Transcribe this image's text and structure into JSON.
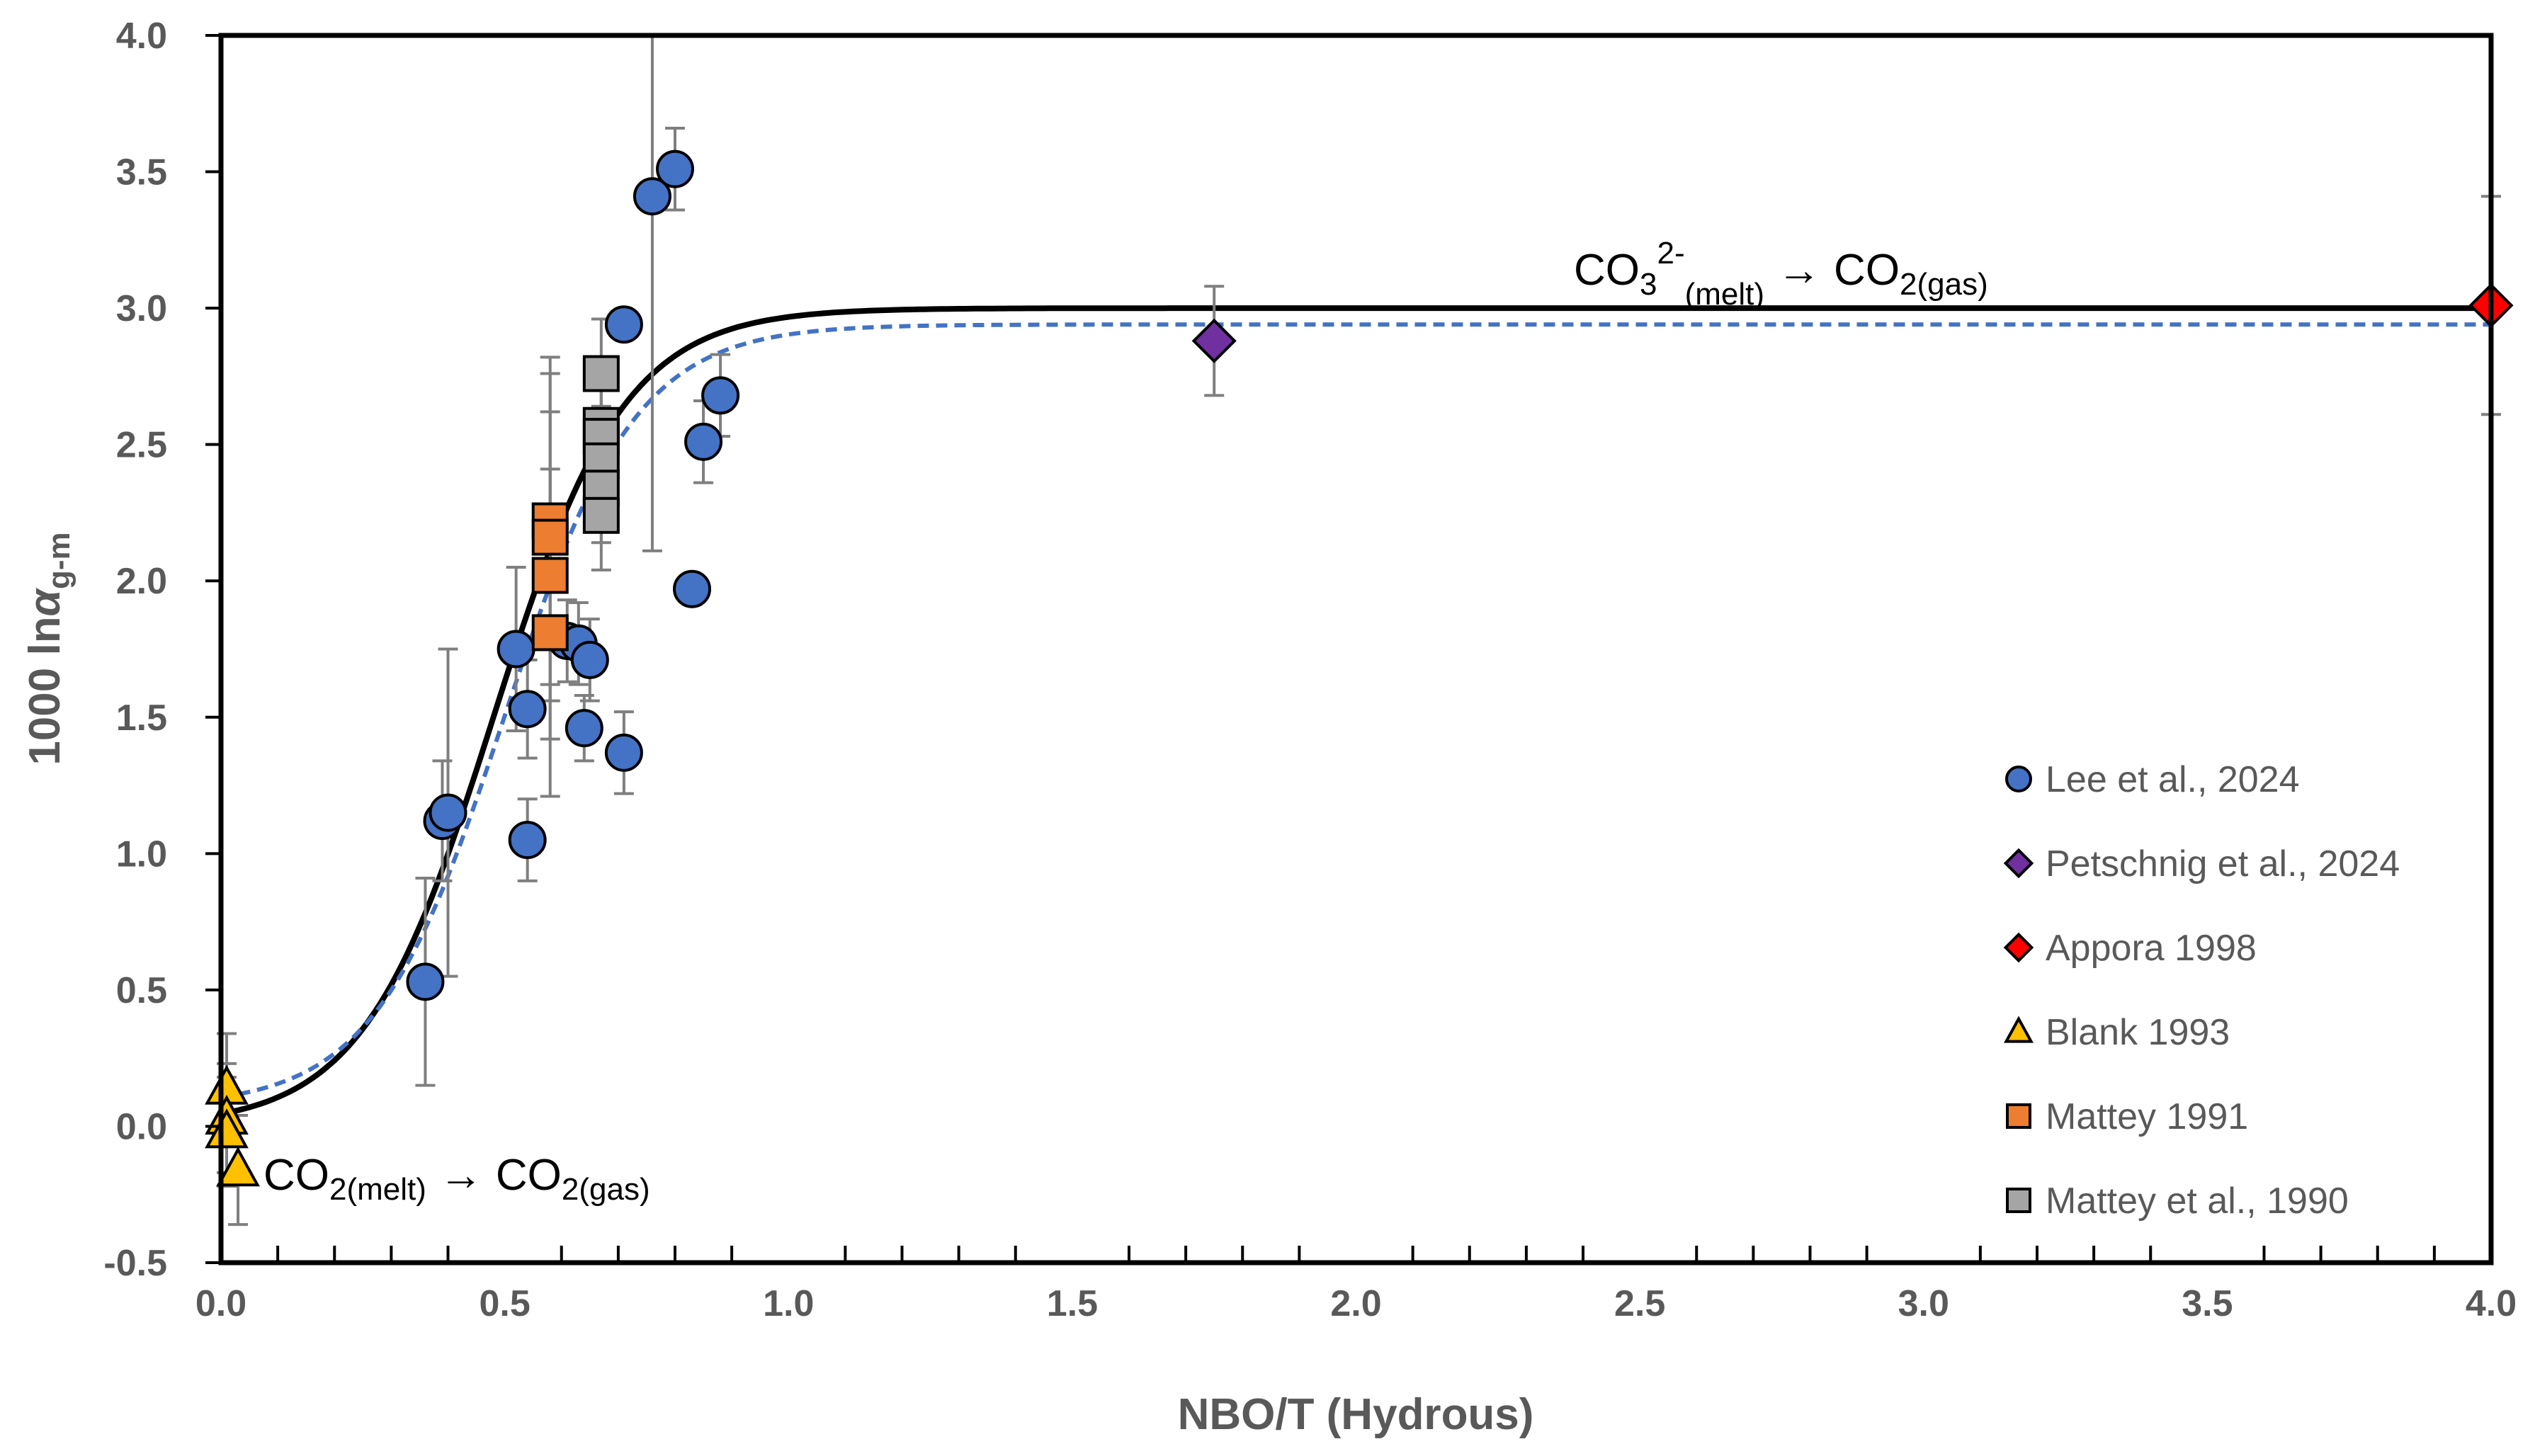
{
  "chart_data": {
    "type": "scatter",
    "title": "",
    "xlabel": "NBO/T (Hydrous)",
    "ylabel_main": "1000 ln",
    "ylabel_symbol": "α",
    "ylabel_sub": "g-m",
    "xlim": [
      0,
      4
    ],
    "ylim": [
      -0.5,
      4
    ],
    "x_ticks": [
      "0.0",
      "0.5",
      "1.0",
      "1.5",
      "2.0",
      "2.5",
      "3.0",
      "3.5",
      "4.0"
    ],
    "y_ticks": [
      "-0.5",
      "0.0",
      "0.5",
      "1.0",
      "1.5",
      "2.0",
      "2.5",
      "3.0",
      "3.5",
      "4.0"
    ],
    "grid": false,
    "legend_position": "bottom-right",
    "colors": {
      "lee": "#4472C4",
      "petschnig": "#7030A0",
      "appora": "#FF0000",
      "blank": "#FFC000",
      "mattey1991": "#ED7D31",
      "mattey1990": "#A5A5A5",
      "fit_solid": "#000000",
      "fit_dashed": "#4472C4",
      "errorbar": "#7F7F7F"
    },
    "series": [
      {
        "key": "lee",
        "name": "Lee et al., 2024",
        "marker": "circle",
        "points": [
          {
            "x": 0.36,
            "y": 0.53,
            "err": 0.38
          },
          {
            "x": 0.39,
            "y": 1.12,
            "err": 0.22
          },
          {
            "x": 0.4,
            "y": 1.15,
            "err": 0.6
          },
          {
            "x": 0.52,
            "y": 1.75,
            "err": 0.3
          },
          {
            "x": 0.54,
            "y": 1.53,
            "err": 0.18
          },
          {
            "x": 0.54,
            "y": 1.05,
            "err": 0.15
          },
          {
            "x": 0.61,
            "y": 1.78,
            "err": 0.15
          },
          {
            "x": 0.63,
            "y": 1.77,
            "err": 0.15
          },
          {
            "x": 0.64,
            "y": 1.46,
            "err": 0.12
          },
          {
            "x": 0.65,
            "y": 1.71,
            "err": 0.15
          },
          {
            "x": 0.71,
            "y": 1.37,
            "err": 0.15
          },
          {
            "x": 0.71,
            "y": 2.94,
            "err": 0.0
          },
          {
            "x": 0.76,
            "y": 3.41,
            "err": 1.3
          },
          {
            "x": 0.8,
            "y": 3.51,
            "err": 0.15
          },
          {
            "x": 0.83,
            "y": 1.97,
            "err": 0.0
          },
          {
            "x": 0.85,
            "y": 2.51,
            "err": 0.15
          },
          {
            "x": 0.88,
            "y": 2.68,
            "err": 0.15
          }
        ]
      },
      {
        "key": "petschnig",
        "name": "Petschnig et al., 2024",
        "marker": "diamond",
        "points": [
          {
            "x": 1.75,
            "y": 2.88,
            "err": 0.2
          }
        ]
      },
      {
        "key": "appora",
        "name": "Appora 1998",
        "marker": "diamond",
        "points": [
          {
            "x": 4.0,
            "y": 3.01,
            "err": 0.4
          }
        ]
      },
      {
        "key": "blank",
        "name": "Blank 1993",
        "marker": "triangle",
        "points": [
          {
            "x": 0.01,
            "y": 0.14,
            "err": 0.2
          },
          {
            "x": 0.01,
            "y": 0.03,
            "err": 0.2
          },
          {
            "x": 0.01,
            "y": -0.02,
            "err": 0.2
          },
          {
            "x": 0.03,
            "y": -0.16,
            "err": 0.2
          }
        ]
      },
      {
        "key": "mattey1991",
        "name": "Mattey 1991",
        "marker": "square",
        "points": [
          {
            "x": 0.58,
            "y": 2.22,
            "err": 0.6
          },
          {
            "x": 0.58,
            "y": 2.16,
            "err": 0.6
          },
          {
            "x": 0.58,
            "y": 2.02,
            "err": 0.6
          },
          {
            "x": 0.58,
            "y": 1.81,
            "err": 0.6
          }
        ]
      },
      {
        "key": "mattey1990",
        "name": "Mattey et al., 1990",
        "marker": "square",
        "points": [
          {
            "x": 0.67,
            "y": 2.76,
            "err": 0.2
          },
          {
            "x": 0.67,
            "y": 2.57,
            "err": 0.2
          },
          {
            "x": 0.67,
            "y": 2.53,
            "err": 0.2
          },
          {
            "x": 0.67,
            "y": 2.44,
            "err": 0.2
          },
          {
            "x": 0.67,
            "y": 2.34,
            "err": 0.2
          },
          {
            "x": 0.67,
            "y": 2.24,
            "err": 0.2
          }
        ]
      }
    ],
    "fits": [
      {
        "key": "fit_solid",
        "style": "solid",
        "amplitude": 3.0,
        "baseline": 0.0,
        "midpoint": 0.48,
        "scale": 0.115
      },
      {
        "key": "fit_dashed",
        "style": "dashed",
        "amplitude": 2.87,
        "baseline": 0.07,
        "midpoint": 0.5,
        "scale": 0.115
      }
    ],
    "annotations": {
      "top": {
        "a1": "CO",
        "a1_sub": "3",
        "a1_sup": "2-",
        "a1_sub2": "(melt)",
        "arrow": "→",
        "a2": "CO",
        "a2_sub": "2(gas)"
      },
      "bottom": {
        "a1": "CO",
        "a1_sub": "2(melt)",
        "arrow": "→",
        "a2": "CO",
        "a2_sub": "2(gas)"
      }
    }
  }
}
